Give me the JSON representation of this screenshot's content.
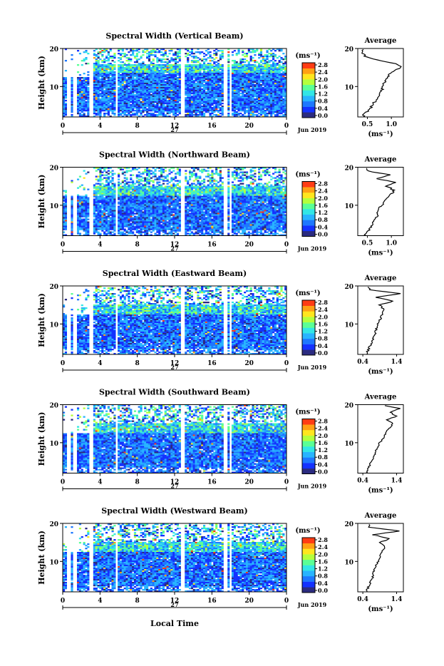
{
  "figure": {
    "xlabel": "Local Time",
    "date_label": "Jun 2019",
    "day_label": "27",
    "ylabel": "Height (km)",
    "colorbar_unit": "(ms⁻¹)",
    "colorbar_ticks": [
      "0.0",
      "0.4",
      "0.8",
      "1.2",
      "1.6",
      "2.0",
      "2.4",
      "2.8"
    ],
    "colorbar_colors": [
      "#2b2b80",
      "#1432ff",
      "#1e78ff",
      "#28b4ff",
      "#32e6e6",
      "#5aff96",
      "#b4ff3c",
      "#ffe61e",
      "#ffa014",
      "#ff3c14"
    ],
    "profile_title": "Average",
    "profile_unit": "(ms⁻¹)"
  },
  "chart_data": [
    {
      "type": "heatmap",
      "title": "Spectral Width (Vertical Beam)",
      "xlim": [
        0,
        24
      ],
      "xticks": [
        "0",
        "4",
        "8",
        "12",
        "16",
        "20",
        "0"
      ],
      "ylim": [
        2,
        20
      ],
      "yticks": [
        "10",
        "20"
      ],
      "gaps_hours": [
        0.7,
        1.3,
        3.0,
        5.8,
        12.9,
        17.4,
        18.0
      ],
      "tropopause_km": 16,
      "profile": {
        "xticks": [
          "0.5",
          "1.0"
        ],
        "xlim": [
          0.3,
          1.25
        ],
        "heights_km": [
          2,
          3,
          4,
          5,
          6,
          7,
          8,
          9,
          10,
          11,
          12,
          13,
          14,
          15,
          16,
          17,
          18,
          19,
          20
        ],
        "values": [
          0.4,
          0.45,
          0.55,
          0.6,
          0.65,
          0.7,
          0.75,
          0.8,
          0.82,
          0.85,
          0.9,
          0.95,
          1.05,
          1.2,
          1.1,
          0.7,
          0.45,
          0.4,
          0.4
        ]
      }
    },
    {
      "type": "heatmap",
      "title": "Spectral Width (Northward Beam)",
      "xlim": [
        0,
        24
      ],
      "xticks": [
        "0",
        "4",
        "8",
        "12",
        "16",
        "20",
        "0"
      ],
      "ylim": [
        2,
        20
      ],
      "yticks": [
        "10",
        "20"
      ],
      "gaps_hours": [
        0.7,
        1.3,
        3.0,
        5.8,
        12.9,
        17.4,
        18.0
      ],
      "tropopause_km": 15,
      "profile": {
        "xticks": [
          "0.5",
          "1.0"
        ],
        "xlim": [
          0.3,
          1.25
        ],
        "heights_km": [
          2,
          3,
          4,
          5,
          6,
          7,
          8,
          9,
          10,
          11,
          12,
          13,
          14,
          15,
          16,
          17,
          18,
          19,
          20
        ],
        "values": [
          0.45,
          0.5,
          0.55,
          0.6,
          0.65,
          0.7,
          0.72,
          0.75,
          0.8,
          0.85,
          0.9,
          1.0,
          1.05,
          0.9,
          1.1,
          0.7,
          1.0,
          0.5,
          0.45
        ]
      }
    },
    {
      "type": "heatmap",
      "title": "Spectral Width (Eastward Beam)",
      "xlim": [
        0,
        24
      ],
      "xticks": [
        "0",
        "4",
        "8",
        "12",
        "16",
        "20",
        "0"
      ],
      "ylim": [
        2,
        20
      ],
      "yticks": [
        "10",
        "20"
      ],
      "gaps_hours": [
        0.7,
        1.3,
        3.0,
        5.8,
        12.9,
        17.4,
        18.0
      ],
      "tropopause_km": 15,
      "profile": {
        "xticks": [
          "0.4",
          "1.4"
        ],
        "xlim": [
          0.25,
          1.6
        ],
        "heights_km": [
          2,
          3,
          4,
          5,
          6,
          7,
          8,
          9,
          10,
          11,
          12,
          13,
          14,
          15,
          16,
          17,
          18,
          19,
          20
        ],
        "values": [
          0.5,
          0.55,
          0.6,
          0.65,
          0.7,
          0.75,
          0.78,
          0.8,
          0.85,
          0.9,
          0.95,
          1.0,
          1.0,
          0.9,
          1.3,
          0.8,
          1.5,
          0.6,
          0.55
        ]
      }
    },
    {
      "type": "heatmap",
      "title": "Spectral Width (Southward Beam)",
      "xlim": [
        0,
        24
      ],
      "xticks": [
        "0",
        "4",
        "8",
        "12",
        "16",
        "20",
        "0"
      ],
      "ylim": [
        2,
        20
      ],
      "yticks": [
        "10",
        "20"
      ],
      "gaps_hours": [
        0.7,
        1.3,
        3.0,
        5.8,
        12.9,
        17.4,
        18.0
      ],
      "tropopause_km": 15,
      "profile": {
        "xticks": [
          "0.4",
          "1.4"
        ],
        "xlim": [
          0.25,
          1.6
        ],
        "heights_km": [
          2,
          3,
          4,
          5,
          6,
          7,
          8,
          9,
          10,
          11,
          12,
          13,
          14,
          15,
          16,
          17,
          18,
          19,
          20
        ],
        "values": [
          0.5,
          0.55,
          0.6,
          0.65,
          0.7,
          0.75,
          0.8,
          0.85,
          0.9,
          1.0,
          1.05,
          1.1,
          1.2,
          1.3,
          1.1,
          1.4,
          1.2,
          1.5,
          0.9
        ]
      }
    },
    {
      "type": "heatmap",
      "title": "Spectral Width (Westward Beam)",
      "xlim": [
        0,
        24
      ],
      "xticks": [
        "0",
        "4",
        "8",
        "12",
        "16",
        "20",
        "0"
      ],
      "ylim": [
        2,
        20
      ],
      "yticks": [
        "10",
        "20"
      ],
      "gaps_hours": [
        0.7,
        1.3,
        3.0,
        5.8,
        12.9,
        17.4,
        18.0
      ],
      "tropopause_km": 15,
      "profile": {
        "xticks": [
          "0.4",
          "1.4"
        ],
        "xlim": [
          0.25,
          1.6
        ],
        "heights_km": [
          2,
          3,
          4,
          5,
          6,
          7,
          8,
          9,
          10,
          11,
          12,
          13,
          14,
          15,
          16,
          17,
          18,
          19,
          20
        ],
        "values": [
          0.5,
          0.55,
          0.6,
          0.65,
          0.7,
          0.72,
          0.75,
          0.8,
          0.85,
          0.9,
          0.95,
          1.0,
          1.05,
          0.9,
          1.2,
          0.7,
          1.5,
          0.6,
          0.55
        ]
      }
    }
  ]
}
